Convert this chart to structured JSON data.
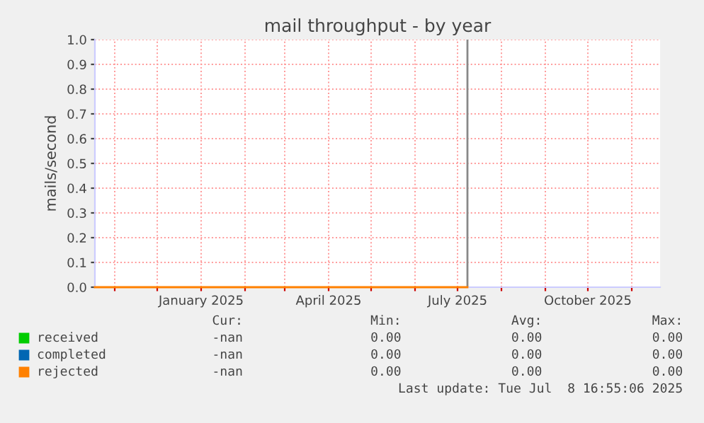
{
  "chart_data": {
    "type": "line",
    "title": "mail throughput - by year",
    "ylabel": "mails/second",
    "xlim": [
      "2024-10-18",
      "2025-11-21"
    ],
    "xticks": [
      {
        "value": "2024-11-01",
        "label": null
      },
      {
        "value": "2024-12-01",
        "label": null
      },
      {
        "value": "2025-01-01",
        "label": "January 2025"
      },
      {
        "value": "2025-02-01",
        "label": null
      },
      {
        "value": "2025-03-01",
        "label": null
      },
      {
        "value": "2025-04-01",
        "label": "April 2025"
      },
      {
        "value": "2025-05-01",
        "label": null
      },
      {
        "value": "2025-06-01",
        "label": null
      },
      {
        "value": "2025-07-01",
        "label": "July 2025"
      },
      {
        "value": "2025-08-01",
        "label": null
      },
      {
        "value": "2025-09-01",
        "label": null
      },
      {
        "value": "2025-10-01",
        "label": "October 2025"
      },
      {
        "value": "2025-11-01",
        "label": null
      }
    ],
    "ylim": [
      0,
      1
    ],
    "yticks": [
      {
        "value": 0,
        "label": "0.0"
      },
      {
        "value": 0.1,
        "label": "0.1"
      },
      {
        "value": 0.2,
        "label": "0.2"
      },
      {
        "value": 0.3,
        "label": "0.3"
      },
      {
        "value": 0.4,
        "label": "0.4"
      },
      {
        "value": 0.5,
        "label": "0.5"
      },
      {
        "value": 0.6,
        "label": "0.6"
      },
      {
        "value": 0.7,
        "label": "0.7"
      },
      {
        "value": 0.8,
        "label": "0.8"
      },
      {
        "value": 0.9,
        "label": "0.9"
      },
      {
        "value": 1,
        "label": "1.0"
      }
    ],
    "grid": true,
    "legend": "bottom",
    "x": [
      "2024-10-18",
      "2025-07-08"
    ],
    "series": [
      {
        "name": "received",
        "color": "#00cc00",
        "values": [
          null,
          null
        ]
      },
      {
        "name": "completed",
        "color": "#0066b3",
        "values": [
          null,
          null
        ]
      },
      {
        "name": "rejected",
        "color": "#ff8000",
        "values": [
          0,
          0
        ]
      }
    ],
    "ref_lines": [
      {
        "axis": "x",
        "value": "2025-07-08",
        "color": "#888888"
      }
    ],
    "annotations": [
      "Cur:",
      "Min:",
      "Avg:",
      "Max:",
      "-nan",
      "0.00",
      "0.00",
      "0.00",
      "-nan",
      "0.00",
      "0.00",
      "0.00",
      "-nan",
      "0.00",
      "0.00",
      "0.00",
      "Last update: Tue Jul  8 16:55:06 2025"
    ]
  }
}
